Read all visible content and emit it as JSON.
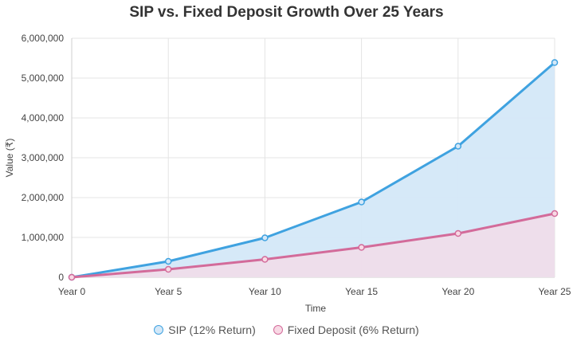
{
  "chart_data": {
    "type": "area",
    "title": "SIP vs. Fixed Deposit Growth Over 25 Years",
    "xlabel": "Time",
    "ylabel": "Value (₹)",
    "categories": [
      "Year 0",
      "Year 5",
      "Year 10",
      "Year 15",
      "Year 20",
      "Year 25"
    ],
    "ylim": [
      0,
      6000000
    ],
    "yticks": [
      "0",
      "1,000,000",
      "2,000,000",
      "3,000,000",
      "4,000,000",
      "5,000,000",
      "6,000,000"
    ],
    "ytick_values": [
      0,
      1000000,
      2000000,
      3000000,
      4000000,
      5000000,
      6000000
    ],
    "grid": true,
    "legend_position": "bottom",
    "series": [
      {
        "name": "SIP (12% Return)",
        "values": [
          0,
          400000,
          990000,
          1890000,
          3290000,
          5390000
        ],
        "color": "#3fa2e0",
        "fill": "#d4e8f8"
      },
      {
        "name": "Fixed Deposit (6% Return)",
        "values": [
          0,
          200000,
          450000,
          750000,
          1100000,
          1600000
        ],
        "color": "#d36b9a",
        "fill": "#f8d9e5"
      }
    ]
  }
}
